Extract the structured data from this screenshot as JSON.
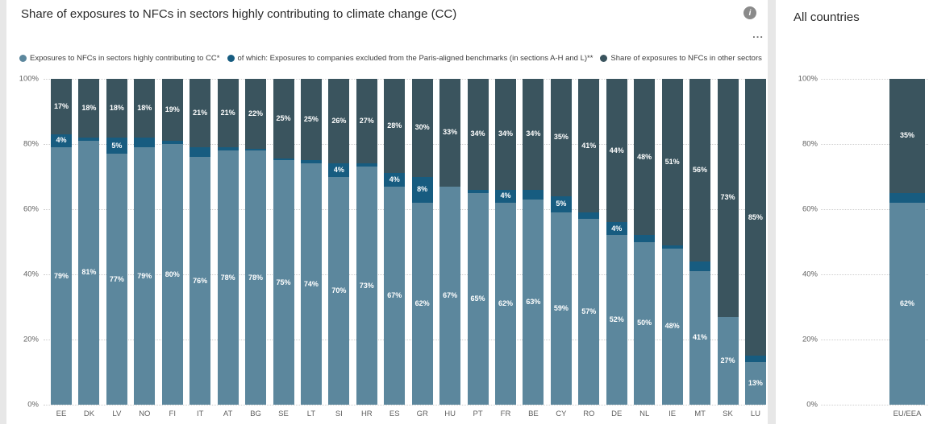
{
  "colors": {
    "highly_contributing": "#5C879D",
    "excluded_paris": "#175C80",
    "other_sectors": "#3A545E",
    "grid": "#cfcfcf",
    "axis_text": "#616161",
    "title_text": "#2b2b2b"
  },
  "main_panel": {
    "title": "Share of exposures to NFCs in sectors highly contributing to climate change (CC)",
    "info_glyph": "i",
    "more_options_glyph": "...",
    "legend": [
      {
        "label": "Exposures to NFCs in sectors highly contributing to CC*",
        "color_key": "highly_contributing"
      },
      {
        "label": "of which: Exposures to companies excluded from the Paris-aligned benchmarks (in sections A-H and L)**",
        "color_key": "excluded_paris"
      },
      {
        "label": "Share of exposures to NFCs in other sectors",
        "color_key": "other_sectors"
      }
    ]
  },
  "right_panel": {
    "title": "All countries"
  },
  "chart_data": [
    {
      "type": "bar",
      "stacked": true,
      "panel": "main",
      "title": "Share of exposures to NFCs in sectors highly contributing to climate change (CC)",
      "categories": [
        "EE",
        "DK",
        "LV",
        "NO",
        "FI",
        "IT",
        "AT",
        "BG",
        "SE",
        "LT",
        "SI",
        "HR",
        "ES",
        "GR",
        "HU",
        "PT",
        "FR",
        "BE",
        "CY",
        "RO",
        "DE",
        "NL",
        "IE",
        "MT",
        "SK",
        "LU"
      ],
      "series": [
        {
          "name": "Exposures to NFCs in sectors highly contributing to CC*",
          "color_key": "highly_contributing",
          "label_min": 0,
          "values": [
            79,
            81,
            77,
            79,
            80,
            76,
            78,
            78,
            75,
            74,
            70,
            73,
            67,
            62,
            67,
            65,
            62,
            63,
            59,
            57,
            52,
            50,
            48,
            41,
            27,
            13
          ]
        },
        {
          "name": "of which: Exposures to companies excluded from the Paris-aligned benchmarks (in sections A-H and L)**",
          "color_key": "excluded_paris",
          "label_min": 4,
          "values": [
            4,
            1,
            5,
            3,
            1,
            3,
            1,
            0.5,
            0.5,
            1,
            4,
            1,
            4,
            8,
            0,
            1,
            4,
            3,
            5,
            2,
            4,
            2,
            1,
            3,
            0,
            2
          ]
        },
        {
          "name": "Share of exposures to NFCs in other sectors",
          "color_key": "other_sectors",
          "label_min": 0,
          "values": [
            17,
            18,
            18,
            18,
            19,
            21,
            21,
            22,
            25,
            25,
            26,
            27,
            28,
            30,
            33,
            34,
            34,
            34,
            35,
            41,
            44,
            48,
            51,
            56,
            73,
            85
          ]
        }
      ],
      "y_ticks": [
        "0%",
        "20%",
        "40%",
        "60%",
        "80%",
        "100%"
      ],
      "ylim": [
        0,
        100
      ],
      "grid": "dotted",
      "legend_position": "top"
    },
    {
      "type": "bar",
      "stacked": true,
      "panel": "right",
      "title": "All countries",
      "categories": [
        "EU/EEA"
      ],
      "series": [
        {
          "name": "Exposures to NFCs in sectors highly contributing to CC*",
          "color_key": "highly_contributing",
          "label_min": 0,
          "values": [
            62
          ]
        },
        {
          "name": "of which: Exposures to companies excluded from the Paris-aligned benchmarks (in sections A-H and L)**",
          "color_key": "excluded_paris",
          "label_min": 4,
          "values": [
            3
          ]
        },
        {
          "name": "Share of exposures to NFCs in other sectors",
          "color_key": "other_sectors",
          "label_min": 0,
          "values": [
            35
          ]
        }
      ],
      "y_ticks": [
        "0%",
        "20%",
        "40%",
        "60%",
        "80%",
        "100%"
      ],
      "ylim": [
        0,
        100
      ],
      "grid": "dotted",
      "legend_position": "none"
    }
  ]
}
